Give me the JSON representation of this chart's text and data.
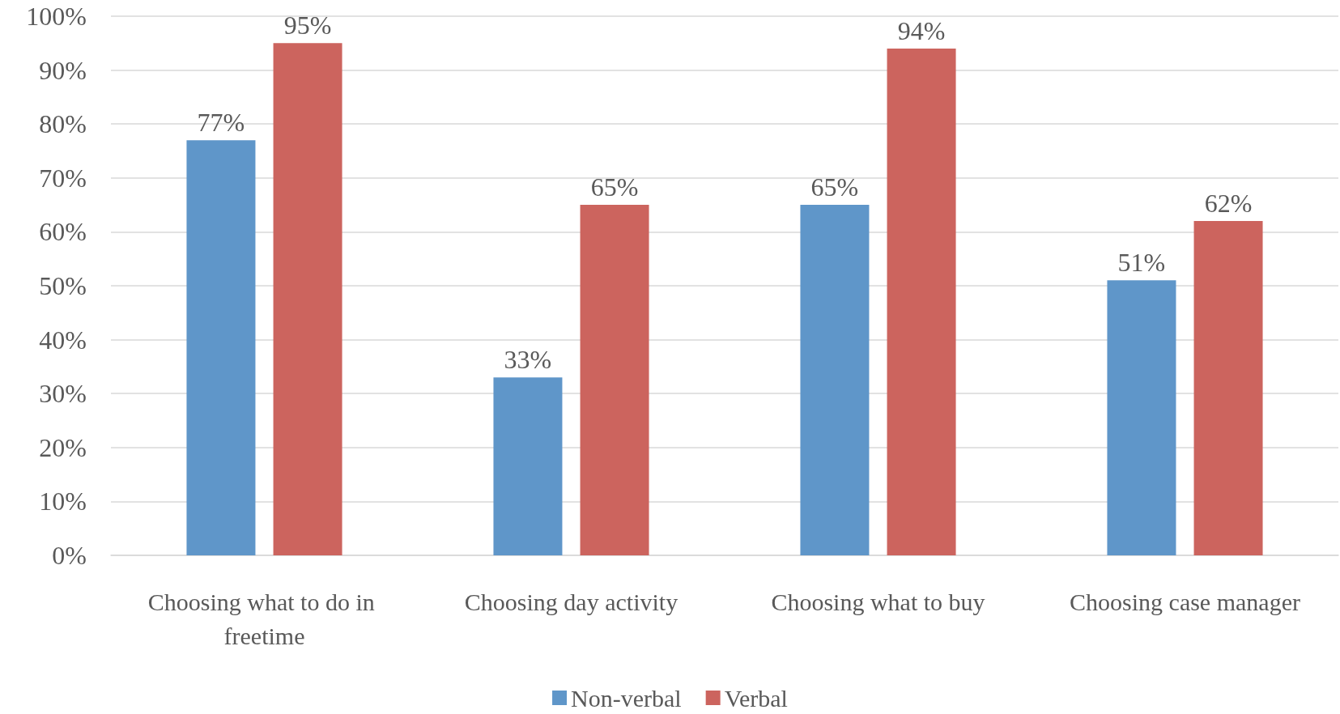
{
  "chart_data": {
    "type": "bar",
    "categories": [
      "Choosing what to do in freetime",
      "Choosing day activity",
      "Choosing what to buy",
      "Choosing case manager"
    ],
    "series": [
      {
        "name": "Non-verbal",
        "color": "#5f96c9",
        "values": [
          77,
          33,
          65,
          51
        ],
        "value_labels": [
          "77%",
          "33%",
          "65%",
          "51%"
        ]
      },
      {
        "name": "Verbal",
        "color": "#cc645e",
        "values": [
          95,
          65,
          94,
          62
        ],
        "value_labels": [
          "95%",
          "65%",
          "94%",
          "62%"
        ]
      }
    ],
    "ylim": [
      0,
      100
    ],
    "yticks": [
      {
        "value": 0,
        "label": "0%"
      },
      {
        "value": 10,
        "label": "10%"
      },
      {
        "value": 20,
        "label": "20%"
      },
      {
        "value": 30,
        "label": "30%"
      },
      {
        "value": 40,
        "label": "40%"
      },
      {
        "value": 50,
        "label": "50%"
      },
      {
        "value": 60,
        "label": "60%"
      },
      {
        "value": 70,
        "label": "70%"
      },
      {
        "value": 80,
        "label": "80%"
      },
      {
        "value": 90,
        "label": "90%"
      },
      {
        "value": 100,
        "label": "100%"
      }
    ],
    "grid": "y",
    "legend": "bottom"
  }
}
